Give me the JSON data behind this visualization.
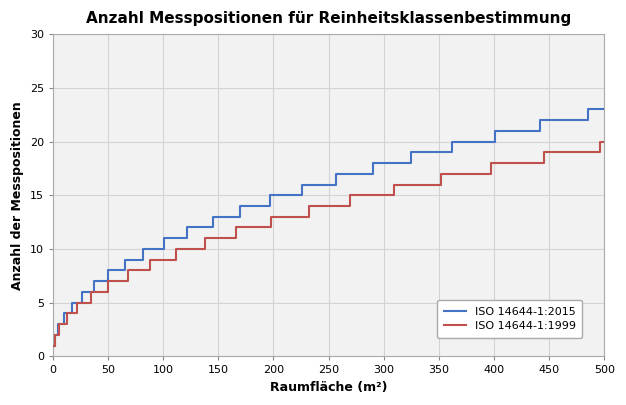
{
  "title": "Anzahl Messpositionen für Reinheitsklassenbestimmung",
  "xlabel": "Raumfläche (m²)",
  "ylabel": "Anzahl der Messpositionen",
  "line2015_color": "#4472C4",
  "line1999_color": "#C0504D",
  "legend_2015": "ISO 14644-1:2015",
  "legend_1999": "ISO 14644-1:1999",
  "xlim": [
    0,
    500
  ],
  "ylim": [
    0,
    30
  ],
  "xticks": [
    0,
    50,
    100,
    150,
    200,
    250,
    300,
    350,
    400,
    450,
    500
  ],
  "yticks": [
    0,
    5,
    10,
    15,
    20,
    25,
    30
  ],
  "background_color": "#FFFFFF",
  "grid_color": "#D3D3D3",
  "plot_area_color": "#F2F2F2"
}
